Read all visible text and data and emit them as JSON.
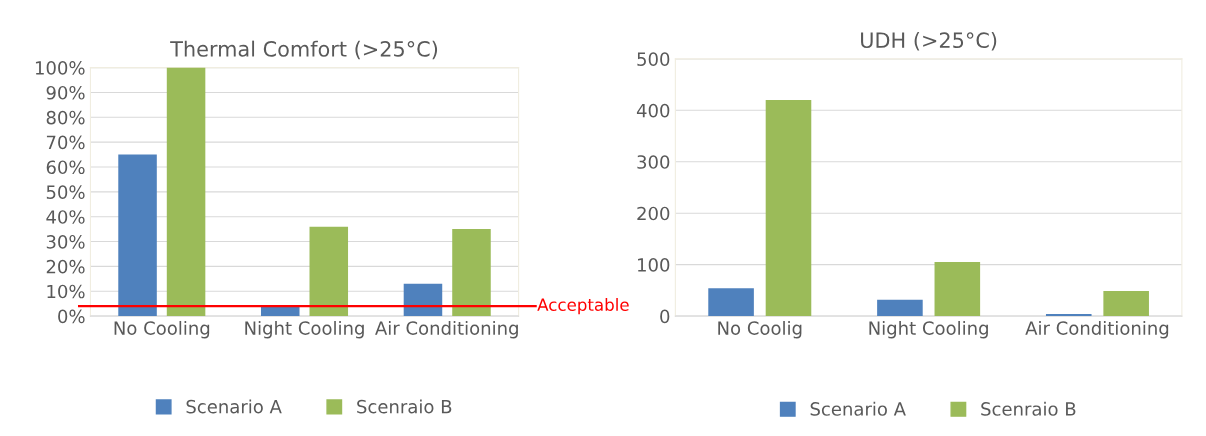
{
  "chart_data": [
    {
      "type": "bar",
      "title": "Thermal Comfort (>25°C)",
      "categories": [
        "No Cooling",
        "Night Cooling",
        "Air Conditioning"
      ],
      "series": [
        {
          "name": "Scenario A",
          "color": "#4f81bd",
          "values": [
            65,
            4,
            13
          ]
        },
        {
          "name": "Scenraio B",
          "color": "#9bbb59",
          "values": [
            100,
            36,
            35
          ]
        }
      ],
      "ylim": [
        0,
        100
      ],
      "yticks": [
        {
          "value": 0,
          "label": "0%"
        },
        {
          "value": 10,
          "label": "10%"
        },
        {
          "value": 20,
          "label": "20%"
        },
        {
          "value": 30,
          "label": "30%"
        },
        {
          "value": 40,
          "label": "40%"
        },
        {
          "value": 50,
          "label": "50%"
        },
        {
          "value": 60,
          "label": "60%"
        },
        {
          "value": 70,
          "label": "70%"
        },
        {
          "value": 80,
          "label": "80%"
        },
        {
          "value": 90,
          "label": "90%"
        },
        {
          "value": 100,
          "label": "100%"
        }
      ],
      "ref_lines": [
        {
          "axis": "y",
          "value": 4,
          "label": "Acceptable",
          "color": "#ff0000"
        }
      ],
      "grid": "y",
      "legend": "bottom"
    },
    {
      "type": "bar",
      "title": "UDH (>25°C)",
      "categories": [
        "No Coolig",
        "Night Cooling",
        "Air Conditioning"
      ],
      "series": [
        {
          "name": "Scenario A",
          "color": "#4f81bd",
          "values": [
            54,
            32,
            4
          ]
        },
        {
          "name": "Scenraio B",
          "color": "#9bbb59",
          "values": [
            420,
            105,
            49
          ]
        }
      ],
      "ylim": [
        0,
        500
      ],
      "yticks": [
        0,
        100,
        200,
        300,
        400,
        500
      ],
      "grid": "y",
      "legend": "bottom"
    }
  ]
}
